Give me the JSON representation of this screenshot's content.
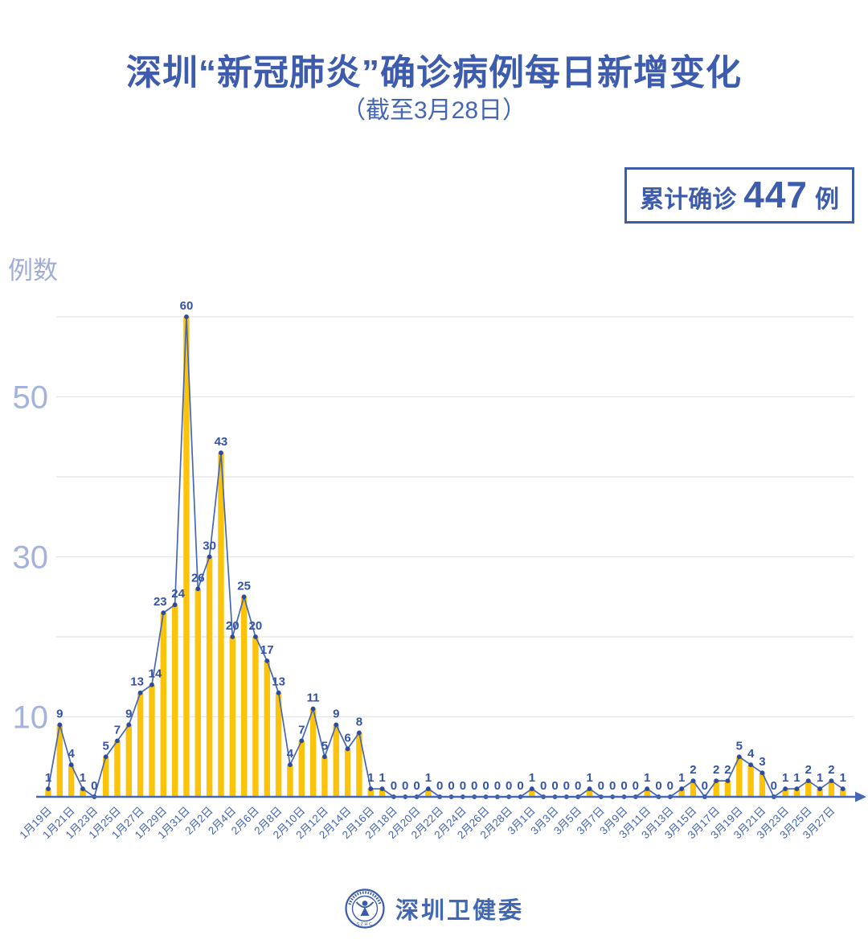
{
  "header": {
    "title": "深圳“新冠肺炎”确诊病例每日新增变化",
    "subtitle": "（截至3月28日）",
    "badge": {
      "prefix": "累计确诊",
      "value": "447",
      "suffix": "例"
    }
  },
  "chart_data": {
    "type": "bar",
    "line_overlay": true,
    "title": "深圳“新冠肺炎”确诊病例每日新增变化（截至3月28日）",
    "ylabel": "例数",
    "xlabel": "",
    "ylim": [
      0,
      62
    ],
    "gridlines": [
      10,
      20,
      30,
      40,
      50,
      60
    ],
    "ytick_labels": [
      10,
      30,
      50
    ],
    "x_tick_step": 2,
    "legend": "none",
    "cumulative_total": "447",
    "dates": [
      "1月19日",
      "1月20日",
      "1月21日",
      "1月22日",
      "1月23日",
      "1月24日",
      "1月25日",
      "1月26日",
      "1月27日",
      "1月28日",
      "1月29日",
      "1月30日",
      "1月31日",
      "2月1日",
      "2月2日",
      "2月3日",
      "2月4日",
      "2月5日",
      "2月6日",
      "2月7日",
      "2月8日",
      "2月9日",
      "2月10日",
      "2月11日",
      "2月12日",
      "2月13日",
      "2月14日",
      "2月15日",
      "2月16日",
      "2月17日",
      "2月18日",
      "2月19日",
      "2月20日",
      "2月21日",
      "2月22日",
      "2月23日",
      "2月24日",
      "2月25日",
      "2月26日",
      "2月27日",
      "2月28日",
      "2月29日",
      "3月1日",
      "3月2日",
      "3月3日",
      "3月4日",
      "3月5日",
      "3月6日",
      "3月7日",
      "3月8日",
      "3月9日",
      "3月10日",
      "3月11日",
      "3月12日",
      "3月13日",
      "3月14日",
      "3月15日",
      "3月16日",
      "3月17日",
      "3月18日",
      "3月19日",
      "3月20日",
      "3月21日",
      "3月22日",
      "3月23日",
      "3月24日",
      "3月25日",
      "3月26日",
      "3月27日",
      "3月28日"
    ],
    "values": [
      1,
      9,
      4,
      1,
      0,
      5,
      7,
      9,
      13,
      14,
      23,
      24,
      60,
      26,
      30,
      43,
      20,
      25,
      20,
      17,
      13,
      4,
      7,
      11,
      5,
      9,
      6,
      8,
      1,
      1,
      0,
      0,
      0,
      1,
      0,
      0,
      0,
      0,
      0,
      0,
      0,
      0,
      1,
      0,
      0,
      0,
      0,
      1,
      0,
      0,
      0,
      0,
      1,
      0,
      0,
      1,
      2,
      0,
      2,
      2,
      5,
      4,
      3,
      0,
      1,
      1,
      2,
      1,
      2,
      1
    ],
    "colors": {
      "bar": "#FCC30B",
      "line": "#4667B4",
      "marker": "#2C4BA0",
      "value_label": "#3353A8",
      "axis": "#4667B4",
      "tick_label": "#4365B2",
      "y_tick_label": "#A5B2DB",
      "gridline": "#E4E4E8"
    }
  },
  "footer": {
    "brand": "深圳卫健委",
    "logo_text": "SZHC"
  }
}
